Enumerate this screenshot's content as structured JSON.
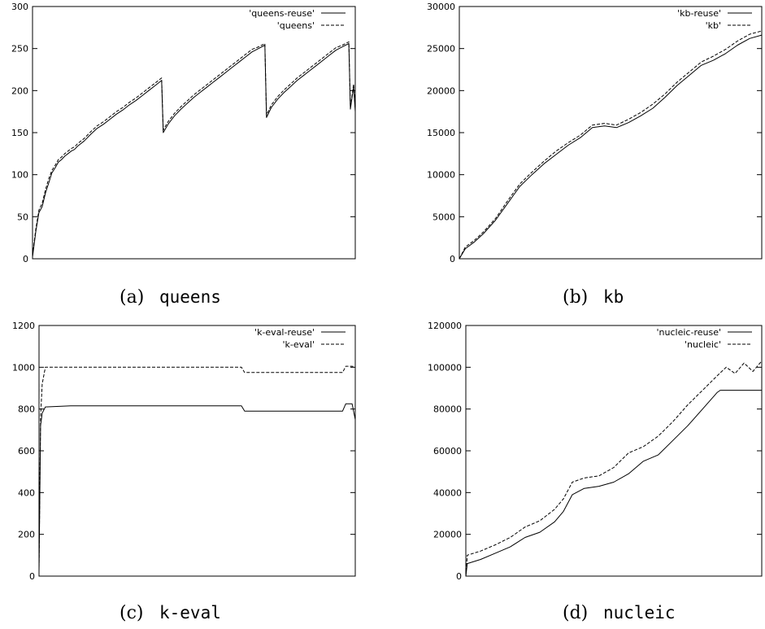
{
  "figure": {
    "panels": [
      {
        "caption_letter": "(a)",
        "caption_name": "queens"
      },
      {
        "caption_letter": "(b)",
        "caption_name": "kb"
      },
      {
        "caption_letter": "(c)",
        "caption_name": "k-eval"
      },
      {
        "caption_letter": "(d)",
        "caption_name": "nucleic"
      }
    ]
  },
  "chart_data": [
    {
      "type": "line",
      "title": "",
      "xlabel": "",
      "ylabel": "",
      "xlim": [
        0,
        100
      ],
      "ylim": [
        0,
        300
      ],
      "yticks": [
        0,
        50,
        100,
        150,
        200,
        250,
        300
      ],
      "legend_position": "top-right",
      "series": [
        {
          "name": "'queens-reuse'",
          "style": "solid",
          "x": [
            0,
            1,
            2,
            3,
            4,
            5,
            6,
            7,
            8,
            9,
            10,
            11,
            12,
            13,
            14,
            16,
            18,
            20,
            22,
            24,
            26,
            28,
            30,
            32,
            34,
            36,
            38,
            40,
            40.5,
            42,
            44,
            46,
            48,
            50,
            52,
            54,
            56,
            58,
            60,
            62,
            64,
            66,
            68,
            70,
            72,
            72.5,
            74,
            76,
            78,
            80,
            82,
            84,
            86,
            88,
            90,
            92,
            94,
            96,
            98,
            98.5,
            99.5,
            100
          ],
          "y": [
            2,
            32,
            55,
            62,
            78,
            90,
            102,
            108,
            115,
            118,
            122,
            125,
            128,
            130,
            134,
            140,
            148,
            155,
            160,
            166,
            172,
            177,
            183,
            188,
            194,
            200,
            206,
            212,
            150,
            160,
            170,
            178,
            185,
            192,
            198,
            204,
            210,
            216,
            222,
            228,
            234,
            240,
            246,
            250,
            254,
            168,
            180,
            190,
            198,
            205,
            212,
            218,
            224,
            230,
            236,
            242,
            248,
            252,
            256,
            178,
            205,
            175
          ]
        },
        {
          "name": "'queens'",
          "style": "dashed",
          "x": [
            0,
            1,
            2,
            3,
            4,
            5,
            6,
            7,
            8,
            9,
            10,
            11,
            12,
            13,
            14,
            16,
            18,
            20,
            22,
            24,
            26,
            28,
            30,
            32,
            34,
            36,
            38,
            40,
            40.5,
            42,
            44,
            46,
            48,
            50,
            52,
            54,
            56,
            58,
            60,
            62,
            64,
            66,
            68,
            70,
            72,
            72.5,
            74,
            76,
            78,
            80,
            82,
            84,
            86,
            88,
            90,
            92,
            94,
            96,
            98,
            98.5,
            99.5,
            100
          ],
          "y": [
            4,
            35,
            58,
            66,
            82,
            95,
            105,
            111,
            118,
            121,
            125,
            128,
            131,
            133,
            137,
            143,
            151,
            158,
            163,
            169,
            175,
            180,
            186,
            191,
            197,
            203,
            209,
            215,
            153,
            163,
            173,
            181,
            188,
            195,
            201,
            207,
            213,
            219,
            225,
            231,
            237,
            243,
            249,
            252,
            256,
            171,
            183,
            193,
            201,
            208,
            215,
            221,
            227,
            233,
            239,
            245,
            251,
            254,
            258,
            180,
            208,
            178
          ]
        }
      ]
    },
    {
      "type": "line",
      "title": "",
      "xlabel": "",
      "ylabel": "",
      "xlim": [
        0,
        100
      ],
      "ylim": [
        0,
        30000
      ],
      "yticks": [
        0,
        5000,
        10000,
        15000,
        20000,
        25000,
        30000
      ],
      "legend_position": "top-right",
      "series": [
        {
          "name": "'kb-reuse'",
          "style": "solid",
          "x": [
            0,
            2,
            5,
            8,
            12,
            16,
            20,
            24,
            28,
            32,
            36,
            40,
            44,
            48,
            52,
            56,
            60,
            64,
            68,
            72,
            76,
            80,
            84,
            88,
            92,
            96,
            100
          ],
          "y": [
            0,
            1200,
            2000,
            3000,
            4600,
            6600,
            8600,
            10000,
            11300,
            12400,
            13500,
            14400,
            15600,
            15800,
            15600,
            16200,
            17000,
            17900,
            19200,
            20600,
            21800,
            23000,
            23600,
            24400,
            25400,
            26200,
            26600
          ]
        },
        {
          "name": "'kb'",
          "style": "dashed",
          "x": [
            0,
            2,
            5,
            8,
            12,
            16,
            20,
            24,
            28,
            32,
            36,
            40,
            44,
            48,
            52,
            56,
            60,
            64,
            68,
            72,
            76,
            80,
            84,
            88,
            92,
            96,
            100
          ],
          "y": [
            0,
            1400,
            2200,
            3200,
            4800,
            6900,
            8900,
            10300,
            11600,
            12800,
            13800,
            14700,
            15900,
            16100,
            15900,
            16600,
            17400,
            18400,
            19600,
            21000,
            22200,
            23400,
            24100,
            24900,
            25900,
            26700,
            27100
          ]
        }
      ]
    },
    {
      "type": "line",
      "title": "",
      "xlabel": "",
      "ylabel": "",
      "xlim": [
        0,
        100
      ],
      "ylim": [
        0,
        1200
      ],
      "yticks": [
        0,
        200,
        400,
        600,
        800,
        1000,
        1200
      ],
      "legend_position": "top-right",
      "series": [
        {
          "name": "'k-eval-reuse'",
          "style": "solid",
          "x": [
            0,
            0.5,
            1,
            2,
            10,
            20,
            30,
            40,
            50,
            60,
            64,
            65,
            70,
            80,
            90,
            96,
            97,
            99,
            100
          ],
          "y": [
            20,
            720,
            780,
            810,
            815,
            815,
            815,
            815,
            815,
            815,
            815,
            790,
            790,
            790,
            790,
            790,
            825,
            825,
            750
          ]
        },
        {
          "name": "'k-eval'",
          "style": "dashed",
          "x": [
            0,
            0.5,
            1,
            2,
            10,
            20,
            30,
            40,
            50,
            60,
            64,
            65,
            70,
            80,
            90,
            96,
            97,
            99,
            100
          ],
          "y": [
            40,
            760,
            920,
            1000,
            1000,
            1000,
            1000,
            1000,
            1000,
            1000,
            1000,
            975,
            975,
            975,
            975,
            975,
            1005,
            1005,
            1000
          ]
        }
      ]
    },
    {
      "type": "line",
      "title": "",
      "xlabel": "",
      "ylabel": "",
      "xlim": [
        0,
        100
      ],
      "ylim": [
        0,
        120000
      ],
      "yticks": [
        0,
        20000,
        40000,
        60000,
        80000,
        100000,
        120000
      ],
      "legend_position": "top-right",
      "series": [
        {
          "name": "'nucleic-reuse'",
          "style": "solid",
          "x": [
            0,
            0.5,
            5,
            10,
            15,
            20,
            25,
            30,
            33,
            36,
            40,
            45,
            50,
            55,
            60,
            65,
            70,
            75,
            80,
            85,
            86,
            90,
            100
          ],
          "y": [
            0,
            6000,
            8000,
            11000,
            14000,
            18500,
            21000,
            26000,
            31000,
            39000,
            42000,
            43000,
            45000,
            49000,
            55000,
            58000,
            65000,
            72000,
            80000,
            88000,
            89000,
            89000,
            89000
          ]
        },
        {
          "name": "'nucleic'",
          "style": "dashed",
          "x": [
            0,
            0.5,
            5,
            10,
            15,
            20,
            25,
            30,
            33,
            36,
            40,
            45,
            50,
            55,
            60,
            65,
            70,
            75,
            80,
            85,
            88,
            91,
            94,
            97,
            100
          ],
          "y": [
            0,
            10000,
            12000,
            15000,
            18500,
            23500,
            26500,
            32000,
            37000,
            45000,
            47000,
            48000,
            52000,
            59000,
            62000,
            67000,
            74000,
            82000,
            89000,
            96000,
            100000,
            97000,
            102000,
            98000,
            103000
          ]
        }
      ]
    }
  ]
}
